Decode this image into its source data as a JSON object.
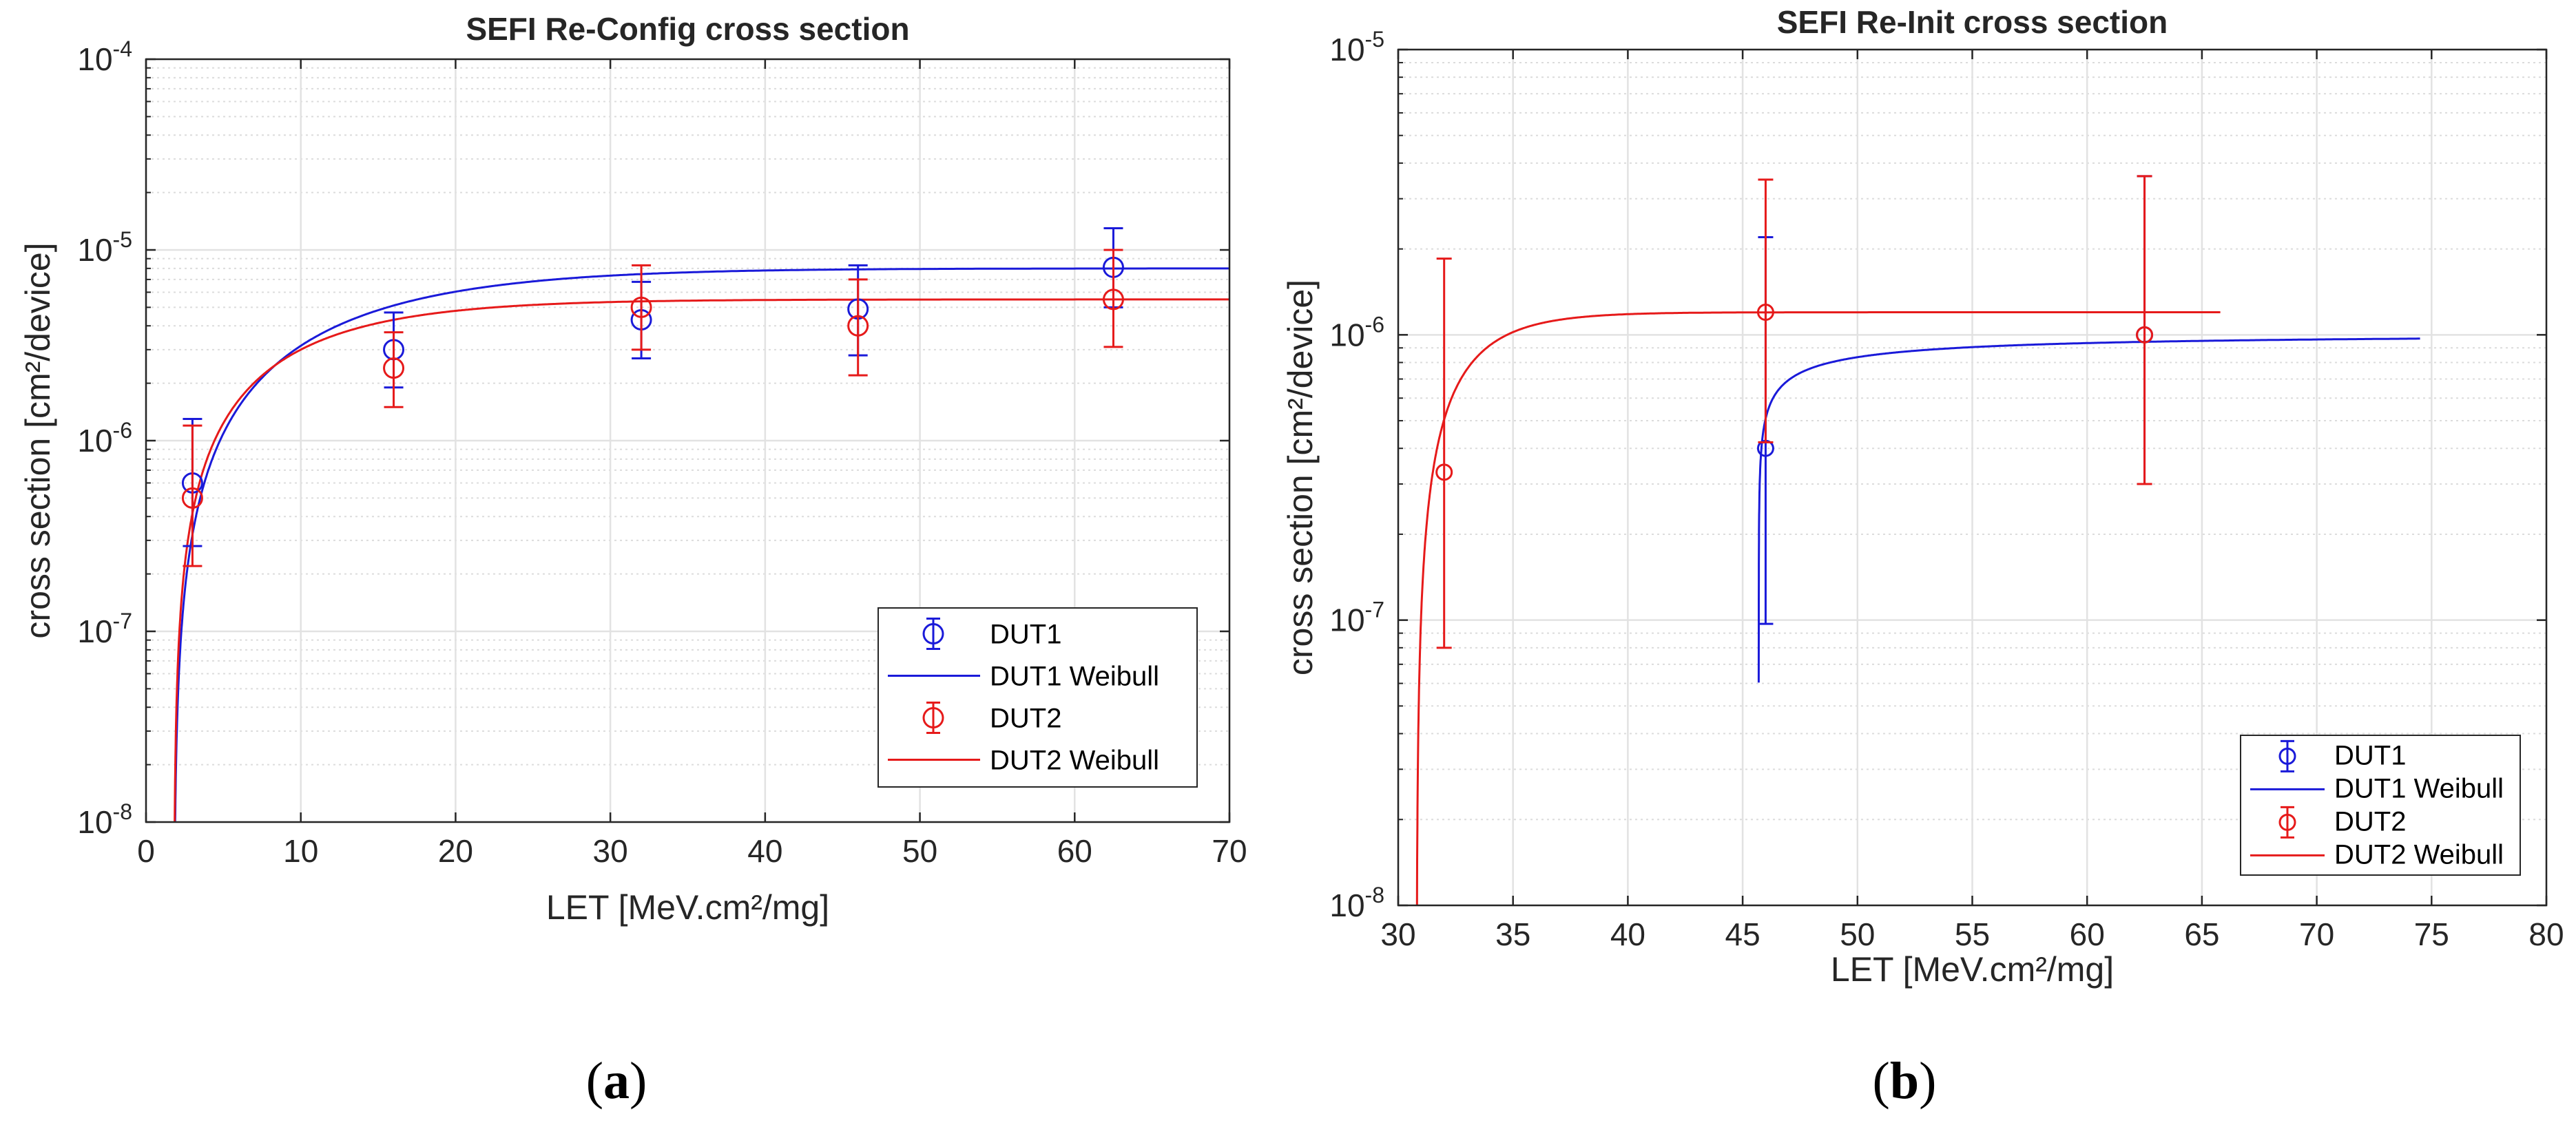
{
  "panel_labels": {
    "a": {
      "open": "(",
      "letter": "a",
      "close": ")"
    },
    "b": {
      "open": "(",
      "letter": "b",
      "close": ")"
    }
  },
  "chart_data": [
    {
      "id": "a",
      "type": "scatter",
      "title": "SEFI Re-Config cross section",
      "xlabel": "LET [MeV.cm²/mg]",
      "ylabel": "cross section [cm²/device]",
      "xlim": [
        0,
        70
      ],
      "ylim": [
        1e-08,
        0.0001
      ],
      "yscale": "log",
      "xticks": [
        0,
        10,
        20,
        30,
        40,
        50,
        60,
        70
      ],
      "xtick_labels": [
        "0",
        "10",
        "20",
        "30",
        "40",
        "50",
        "60",
        "70"
      ],
      "yticks": [
        -8,
        -7,
        -6,
        -5,
        -4
      ],
      "ytick_exponents": [
        "-8",
        "-7",
        "-6",
        "-5",
        "-4"
      ],
      "ytick_base": "10",
      "grid": true,
      "legend_position": "bottom-right",
      "colors": {
        "DUT1": "#1a1ad9",
        "DUT2": "#e61a1a"
      },
      "series": [
        {
          "name": "DUT1",
          "kind": "errorbar",
          "color": "#1a1ad9",
          "points": [
            {
              "x": 3,
              "y": 6e-07,
              "low": 2.8e-07,
              "high": 1.3e-06
            },
            {
              "x": 16,
              "y": 3e-06,
              "low": 1.9e-06,
              "high": 4.7e-06
            },
            {
              "x": 32,
              "y": 4.3e-06,
              "low": 2.7e-06,
              "high": 6.8e-06
            },
            {
              "x": 46,
              "y": 4.9e-06,
              "low": 2.8e-06,
              "high": 8.3e-06
            },
            {
              "x": 62.5,
              "y": 8.1e-06,
              "low": 5e-06,
              "high": 1.3e-05
            }
          ]
        },
        {
          "name": "DUT1 Weibull",
          "kind": "weibull",
          "color": "#1a1ad9",
          "params": {
            "sat": 8e-06,
            "l0": 1.8,
            "w": 14,
            "s": 1.3,
            "xmax": 70
          }
        },
        {
          "name": "DUT2",
          "kind": "errorbar",
          "color": "#e61a1a",
          "points": [
            {
              "x": 3,
              "y": 5e-07,
              "low": 2.2e-07,
              "high": 1.2e-06
            },
            {
              "x": 16,
              "y": 2.4e-06,
              "low": 1.5e-06,
              "high": 3.7e-06
            },
            {
              "x": 32,
              "y": 5e-06,
              "low": 3e-06,
              "high": 8.3e-06
            },
            {
              "x": 46,
              "y": 4e-06,
              "low": 2.2e-06,
              "high": 7e-06
            },
            {
              "x": 62.5,
              "y": 5.5e-06,
              "low": 3.1e-06,
              "high": 1e-05
            }
          ]
        },
        {
          "name": "DUT2 Weibull",
          "kind": "weibull",
          "color": "#e61a1a",
          "params": {
            "sat": 5.5e-06,
            "l0": 1.8,
            "w": 10,
            "s": 1.2,
            "xmax": 70
          }
        }
      ]
    },
    {
      "id": "b",
      "type": "scatter",
      "title": "SEFI Re-Init cross section",
      "xlabel": "LET [MeV.cm²/mg]",
      "ylabel": "cross section [cm²/device]",
      "xlim": [
        30,
        80
      ],
      "ylim": [
        1e-08,
        1e-05
      ],
      "yscale": "log",
      "xticks": [
        30,
        35,
        40,
        45,
        50,
        55,
        60,
        65,
        70,
        75,
        80
      ],
      "xtick_labels": [
        "30",
        "35",
        "40",
        "45",
        "50",
        "55",
        "60",
        "65",
        "70",
        "75",
        "80"
      ],
      "yticks": [
        -8,
        -7,
        -6,
        -5
      ],
      "ytick_exponents": [
        "-8",
        "-7",
        "-6",
        "-5"
      ],
      "ytick_base": "10",
      "grid": true,
      "legend_position": "bottom-right",
      "colors": {
        "DUT1": "#1a1ad9",
        "DUT2": "#e61a1a"
      },
      "series": [
        {
          "name": "DUT1",
          "kind": "errorbar",
          "color": "#1a1ad9",
          "points": [
            {
              "x": 46,
              "y": 4e-07,
              "low": 9.7e-08,
              "high": 2.2e-06
            },
            {
              "x": 62.5,
              "y": 1e-06,
              "low": 3e-07,
              "high": 3.6e-06
            }
          ]
        },
        {
          "name": "DUT1 Weibull",
          "kind": "weibull",
          "color": "#1a1ad9",
          "params": {
            "sat": 1e-06,
            "l0": 45.7,
            "w": 0.8,
            "s": 0.35,
            "xmax": 74.5
          }
        },
        {
          "name": "DUT2",
          "kind": "errorbar",
          "color": "#e61a1a",
          "points": [
            {
              "x": 32,
              "y": 3.3e-07,
              "low": 8e-08,
              "high": 1.85e-06
            },
            {
              "x": 46,
              "y": 1.2e-06,
              "low": 4.2e-07,
              "high": 3.5e-06
            },
            {
              "x": 62.5,
              "y": 1e-06,
              "low": 3e-07,
              "high": 3.6e-06
            }
          ]
        },
        {
          "name": "DUT2 Weibull",
          "kind": "weibull",
          "color": "#e61a1a",
          "params": {
            "sat": 1.2e-06,
            "l0": 30.8,
            "w": 2.2,
            "s": 1.0,
            "xmax": 65.8
          }
        }
      ]
    }
  ]
}
